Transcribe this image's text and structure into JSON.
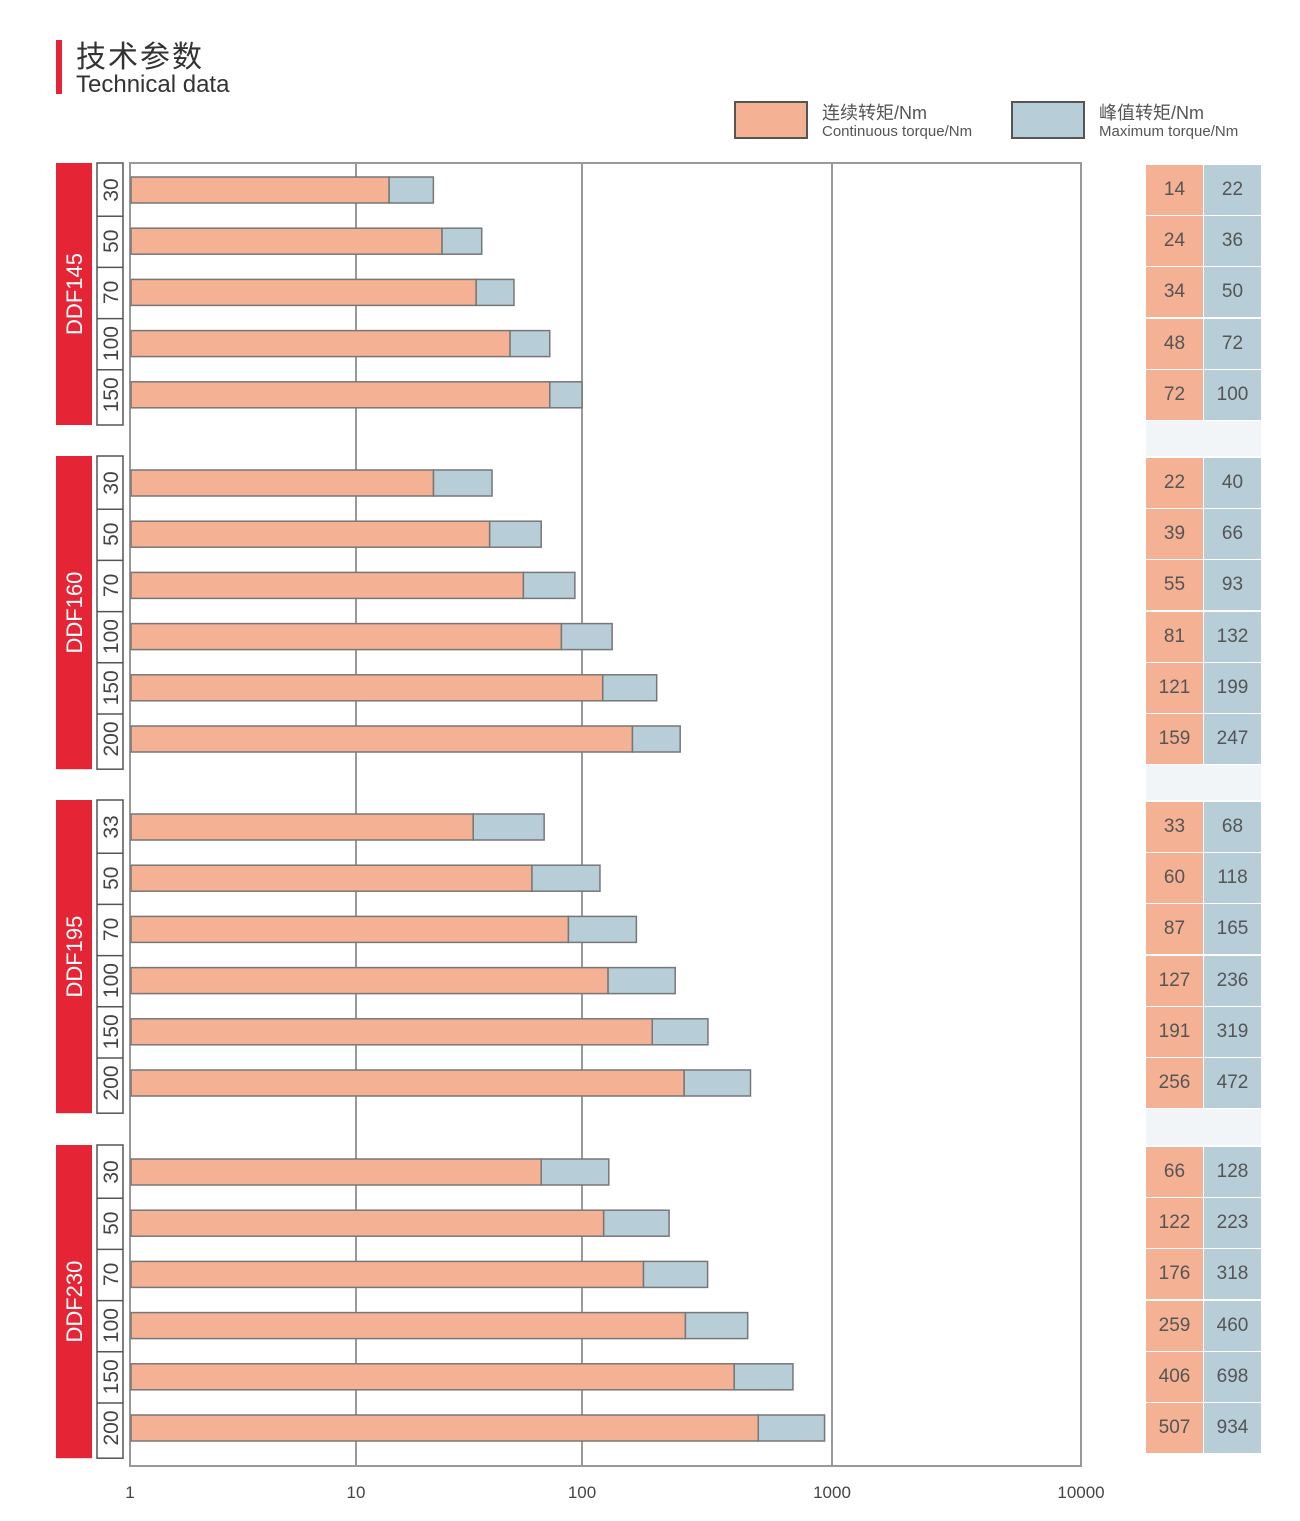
{
  "header": {
    "title_cn": "技术参数",
    "title_en": "Technical data"
  },
  "legend": {
    "continuous_cn": "连续转矩/Nm",
    "continuous_en": "Continuous torque/Nm",
    "maximum_cn": "峰值转矩/Nm",
    "maximum_en": "Maximum torque/Nm"
  },
  "colors": {
    "brand": "#e52535",
    "continuous": "#f4b193",
    "maximum": "#b7cdd8",
    "grid": "#999999"
  },
  "chart_data": {
    "type": "bar",
    "orientation": "horizontal",
    "xscale": "log",
    "xlim": [
      1,
      10000
    ],
    "xticks": [
      "1",
      "10",
      "100",
      "1000",
      "10000"
    ],
    "legend_position": "top-right",
    "groups": [
      {
        "name": "DDF145",
        "sizes": [
          "30",
          "50",
          "70",
          "100",
          "150"
        ],
        "continuous": [
          14,
          24,
          34,
          48,
          72
        ],
        "maximum": [
          22,
          36,
          50,
          72,
          100
        ]
      },
      {
        "name": "DDF160",
        "sizes": [
          "30",
          "50",
          "70",
          "100",
          "150",
          "200"
        ],
        "continuous": [
          22,
          39,
          55,
          81,
          121,
          159
        ],
        "maximum": [
          40,
          66,
          93,
          132,
          199,
          247
        ]
      },
      {
        "name": "DDF195",
        "sizes": [
          "33",
          "50",
          "70",
          "100",
          "150",
          "200"
        ],
        "continuous": [
          33,
          60,
          87,
          127,
          191,
          256
        ],
        "maximum": [
          68,
          118,
          165,
          236,
          319,
          472
        ]
      },
      {
        "name": "DDF230",
        "sizes": [
          "30",
          "50",
          "70",
          "100",
          "150",
          "200"
        ],
        "continuous": [
          66,
          122,
          176,
          259,
          406,
          507
        ],
        "maximum": [
          128,
          223,
          318,
          460,
          698,
          934
        ]
      }
    ]
  }
}
